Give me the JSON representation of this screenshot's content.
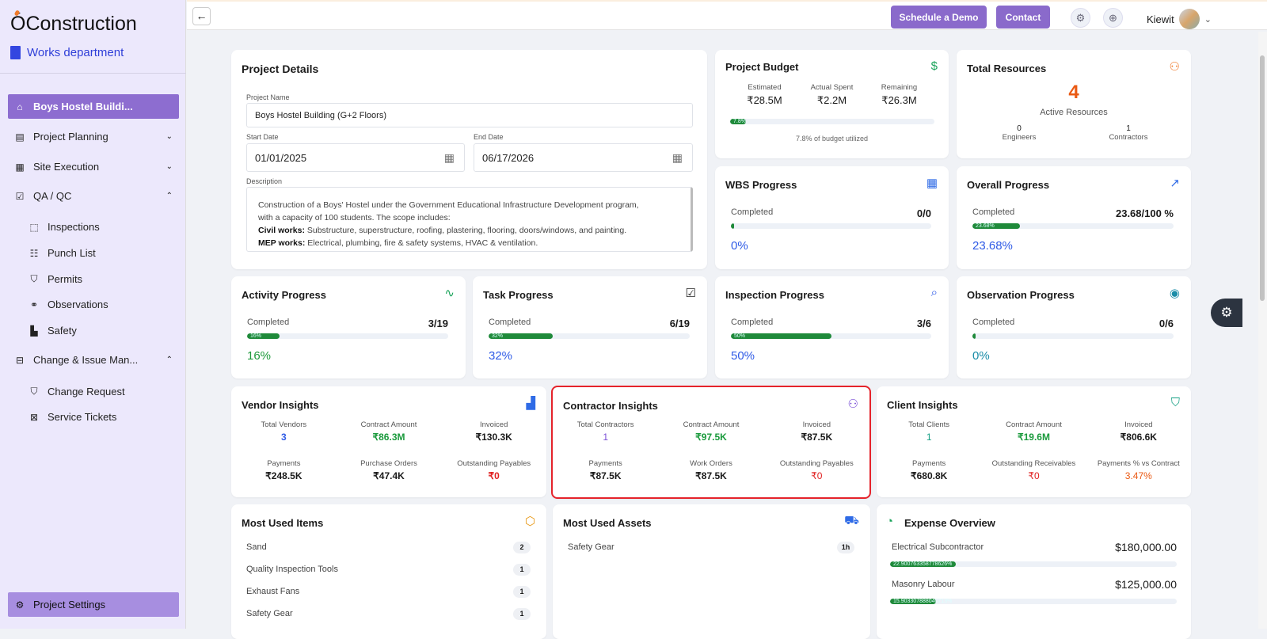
{
  "brand": {
    "logo": "Construction",
    "logo_mark": "Ó",
    "department": "Works department"
  },
  "sidebar": {
    "items": [
      {
        "label": "Boys Hostel Buildi...",
        "icon": "home-icon"
      },
      {
        "label": "Project Planning",
        "icon": "clipboard-icon"
      },
      {
        "label": "Site Execution",
        "icon": "building-icon"
      },
      {
        "label": "QA / QC",
        "icon": "checklist-icon"
      },
      {
        "label": "Inspections",
        "icon": "inspect-icon"
      },
      {
        "label": "Punch List",
        "icon": "list-icon"
      },
      {
        "label": "Permits",
        "icon": "shield-icon"
      },
      {
        "label": "Observations",
        "icon": "binoculars-icon"
      },
      {
        "label": "Safety",
        "icon": "safety-icon"
      },
      {
        "label": "Change & Issue Man...",
        "icon": "change-icon"
      },
      {
        "label": "Change Request",
        "icon": "shield-check-icon"
      },
      {
        "label": "Service Tickets",
        "icon": "ticket-icon"
      }
    ],
    "settings": "Project Settings"
  },
  "topbar": {
    "schedule": "Schedule a Demo",
    "contact": "Contact",
    "user": "Kiewit"
  },
  "project": {
    "title": "Project Details",
    "name_label": "Project Name",
    "name": "Boys Hostel Building (G+2 Floors)",
    "start_label": "Start Date",
    "start": "01/01/2025",
    "end_label": "End Date",
    "end": "06/17/2026",
    "desc_label": "Description",
    "desc1": "Construction of a Boys' Hostel under the Government Educational Infrastructure Development program,",
    "desc2": "with a capacity of 100 students. The scope includes:",
    "civil_b": "Civil works:",
    "civil": " Substructure, superstructure, roofing, plastering, flooring, doors/windows, and painting.",
    "mep_b": "MEP works:",
    "mep": " Electrical, plumbing, fire & safety systems, HVAC & ventilation."
  },
  "budget": {
    "title": "Project Budget",
    "est_l": "Estimated",
    "est": "₹28.5M",
    "act_l": "Actual Spent",
    "act": "₹2.2M",
    "rem_l": "Remaining",
    "rem": "₹26.3M",
    "bar_label": "7.8%",
    "pct": 7.8,
    "note": "7.8% of budget utilized"
  },
  "resources": {
    "title": "Total Resources",
    "count": "4",
    "label": "Active Resources",
    "eng": "0",
    "eng_l": "Engineers",
    "con": "1",
    "con_l": "Contractors"
  },
  "progress": [
    {
      "title": "WBS Progress",
      "completed": "Completed",
      "ratio": "0/0",
      "pct_text": "0%",
      "pct": 0,
      "bar_label": "",
      "color": "#2f5be6"
    },
    {
      "title": "Overall Progress",
      "completed": "Completed",
      "ratio": "23.68/100 %",
      "pct_text": "23.68%",
      "pct": 23.68,
      "bar_label": "23.68%",
      "color": "#2f5be6"
    },
    {
      "title": "Activity Progress",
      "completed": "Completed",
      "ratio": "3/19",
      "pct_text": "16%",
      "pct": 16,
      "bar_label": "16%",
      "color": "#1f9a3c"
    },
    {
      "title": "Task Progress",
      "completed": "Completed",
      "ratio": "6/19",
      "pct_text": "32%",
      "pct": 32,
      "bar_label": "32%",
      "color": "#2f5be6"
    },
    {
      "title": "Inspection Progress",
      "completed": "Completed",
      "ratio": "3/6",
      "pct_text": "50%",
      "pct": 50,
      "bar_label": "50%",
      "color": "#2f5be6"
    },
    {
      "title": "Observation Progress",
      "completed": "Completed",
      "ratio": "0/6",
      "pct_text": "0%",
      "pct": 0,
      "bar_label": "",
      "color": "#1b8da8"
    }
  ],
  "vendor": {
    "title": "Vendor Insights",
    "a_l": "Total Vendors",
    "a": "3",
    "b_l": "Contract Amount",
    "b": "₹86.3M",
    "c_l": "Invoiced",
    "c": "₹130.3K",
    "d_l": "Payments",
    "d": "₹248.5K",
    "e_l": "Purchase Orders",
    "e": "₹47.4K",
    "f_l": "Outstanding Payables",
    "f": "₹0"
  },
  "contractor": {
    "title": "Contractor Insights",
    "a_l": "Total Contractors",
    "a": "1",
    "b_l": "Contract Amount",
    "b": "₹97.5K",
    "c_l": "Invoiced",
    "c": "₹87.5K",
    "d_l": "Payments",
    "d": "₹87.5K",
    "e_l": "Work Orders",
    "e": "₹87.5K",
    "f_l": "Outstanding Payables",
    "f": "₹0"
  },
  "client": {
    "title": "Client Insights",
    "a_l": "Total Clients",
    "a": "1",
    "b_l": "Contract Amount",
    "b": "₹19.6M",
    "c_l": "Invoiced",
    "c": "₹806.6K",
    "d_l": "Payments",
    "d": "₹680.8K",
    "e_l": "Outstanding Receivables",
    "e": "₹0",
    "f_l": "Payments % vs Contract",
    "f": "3.47%"
  },
  "items": {
    "title": "Most Used Items",
    "list": [
      {
        "name": "Sand",
        "n": "2"
      },
      {
        "name": "Quality Inspection Tools",
        "n": "1"
      },
      {
        "name": "Exhaust Fans",
        "n": "1"
      },
      {
        "name": "Safety Gear",
        "n": "1"
      }
    ]
  },
  "assets": {
    "title": "Most Used Assets",
    "list": [
      {
        "name": "Safety Gear",
        "n": "1h"
      }
    ]
  },
  "expense": {
    "title": "Expense Overview",
    "list": [
      {
        "name": "Electrical Subcontractor",
        "amount": "$180,000.00",
        "bar_label": "22.900763358778626%",
        "pct": 22.9
      },
      {
        "name": "Masonry Labour",
        "amount": "$125,000.00",
        "bar_label": "15.903307888040713%",
        "pct": 15.9
      }
    ]
  }
}
